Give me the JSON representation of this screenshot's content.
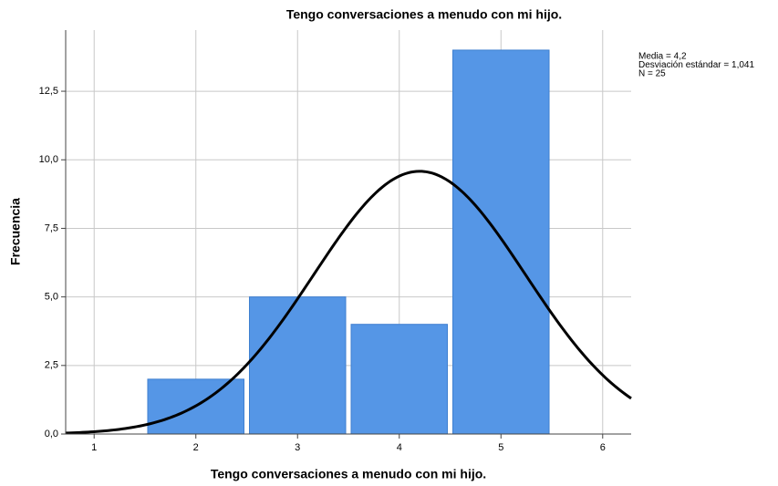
{
  "chart_data": {
    "type": "histogram",
    "title": "Tengo conversaciones a menudo con mi hijo.",
    "xlabel": "Tengo conversaciones a menudo con mi hijo.",
    "ylabel": "Frecuencia",
    "bins": [
      1.5,
      2.5,
      3.5,
      4.5,
      5.5
    ],
    "counts": [
      2,
      5,
      4,
      14
    ],
    "color": "#5596e6",
    "curve_color": "#000000",
    "xlim": [
      0.72,
      6.28
    ],
    "xticks": [
      1,
      2,
      3,
      4,
      5,
      6
    ],
    "ylim": [
      0,
      14.73
    ],
    "yticks": [
      {
        "value": 0,
        "label": "0,0"
      },
      {
        "value": 2.5,
        "label": "2,5"
      },
      {
        "value": 5,
        "label": "5,0"
      },
      {
        "value": 7.5,
        "label": "7,5"
      },
      {
        "value": 10,
        "label": "10,0"
      },
      {
        "value": 12.5,
        "label": "12,5"
      }
    ],
    "grid": true,
    "stats": [
      {
        "value": 4.2,
        "label": "Media = 4,2"
      },
      {
        "value": 1.041,
        "label": "Desviación estándar = 1,041"
      },
      {
        "value": 25,
        "label": "N = 25"
      }
    ]
  }
}
